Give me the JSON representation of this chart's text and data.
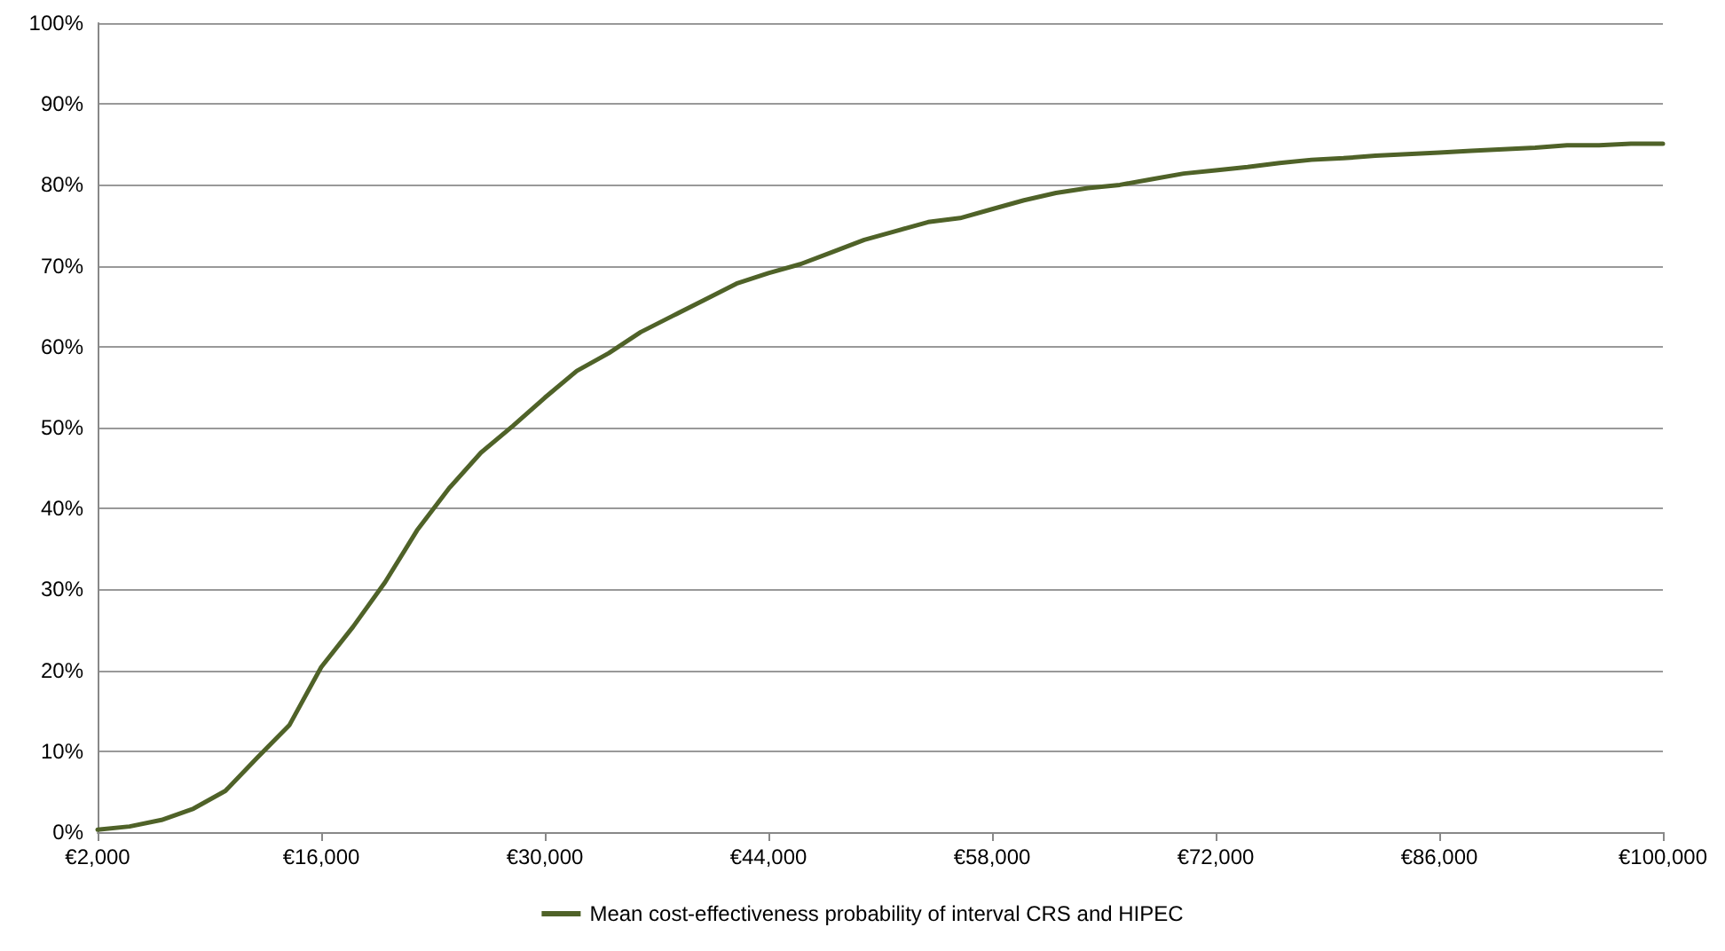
{
  "chart_data": {
    "type": "line",
    "marker": "none",
    "line_style": "solid",
    "grid": "y",
    "legend": "bottom",
    "x": [
      2000,
      4000,
      6000,
      8000,
      10000,
      12000,
      14000,
      16000,
      18000,
      20000,
      22000,
      24000,
      26000,
      28000,
      30000,
      32000,
      34000,
      36000,
      38000,
      40000,
      42000,
      44000,
      46000,
      48000,
      50000,
      52000,
      54000,
      56000,
      58000,
      60000,
      62000,
      64000,
      66000,
      68000,
      70000,
      72000,
      74000,
      76000,
      78000,
      80000,
      82000,
      84000,
      86000,
      88000,
      90000,
      92000,
      94000,
      96000,
      98000,
      100000
    ],
    "series": [
      {
        "name": "Mean cost-effectiveness probability of interval CRS and HIPEC",
        "color": "#4f6228",
        "values": [
          0.3,
          0.7,
          1.5,
          2.9,
          5.1,
          9.2,
          13.2,
          20.4,
          25.4,
          30.9,
          37.3,
          42.5,
          46.9,
          50.2,
          53.7,
          57.0,
          59.2,
          61.8,
          63.8,
          65.8,
          67.8,
          69.1,
          70.2,
          71.7,
          73.2,
          74.3,
          75.4,
          75.9,
          77.0,
          78.1,
          79.0,
          79.6,
          80.0,
          80.7,
          81.4,
          81.8,
          82.2,
          82.7,
          83.1,
          83.3,
          83.6,
          83.8,
          84.0,
          84.2,
          84.4,
          84.6,
          84.9,
          84.9,
          85.1,
          85.1
        ]
      }
    ],
    "xlim": [
      2000,
      100000
    ],
    "xticks": [
      {
        "value": 2000,
        "label": "€2,000"
      },
      {
        "value": 16000,
        "label": "€16,000"
      },
      {
        "value": 30000,
        "label": "€30,000"
      },
      {
        "value": 44000,
        "label": "€44,000"
      },
      {
        "value": 58000,
        "label": "€58,000"
      },
      {
        "value": 72000,
        "label": "€72,000"
      },
      {
        "value": 86000,
        "label": "€86,000"
      },
      {
        "value": 100000,
        "label": "€100,000"
      }
    ],
    "ylim": [
      0,
      100
    ],
    "yticks": [
      {
        "value": 0,
        "label": "0%"
      },
      {
        "value": 10,
        "label": "10%"
      },
      {
        "value": 20,
        "label": "20%"
      },
      {
        "value": 30,
        "label": "30%"
      },
      {
        "value": 40,
        "label": "40%"
      },
      {
        "value": 50,
        "label": "50%"
      },
      {
        "value": 60,
        "label": "60%"
      },
      {
        "value": 70,
        "label": "70%"
      },
      {
        "value": 80,
        "label": "80%"
      },
      {
        "value": 90,
        "label": "90%"
      },
      {
        "value": 100,
        "label": "100%"
      }
    ]
  }
}
